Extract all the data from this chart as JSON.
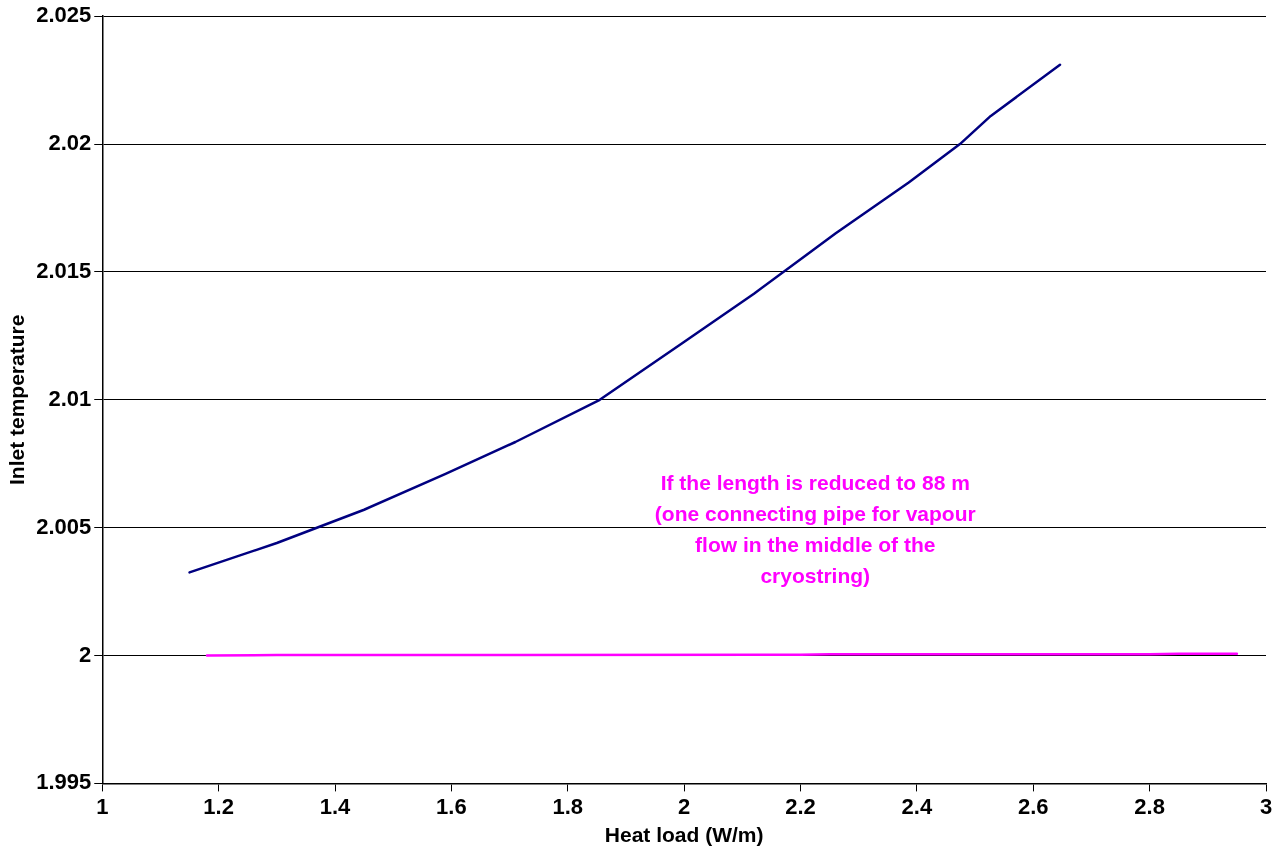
{
  "chart_data": {
    "type": "line",
    "xlabel": "Heat load (W/m)",
    "ylabel": "Inlet temperature",
    "xlim": [
      1,
      3
    ],
    "xticks": [
      1,
      1.2,
      1.4,
      1.6,
      1.8,
      2,
      2.2,
      2.4,
      2.6,
      2.8,
      3
    ],
    "ylim": [
      1.995,
      2.025
    ],
    "yticks": [
      1.995,
      2,
      2.005,
      2.01,
      2.015,
      2.02,
      2.025
    ],
    "grid": "y",
    "legend": false,
    "marker": "none",
    "line_style": "solid",
    "series": [
      {
        "color": "#000080",
        "x": [
          1.15,
          1.3,
          1.45,
          1.59,
          1.71,
          1.855,
          1.996,
          2.12,
          2.26,
          2.386,
          2.474,
          2.527,
          2.646
        ],
        "values": [
          2.00325,
          2.0044,
          2.0057,
          2.0071,
          2.00835,
          2.01,
          2.0122,
          2.01415,
          2.0165,
          2.0185,
          2.02,
          2.0211,
          2.0231
        ]
      },
      {
        "color": "#ff00ff",
        "x": [
          1.18,
          1.3,
          2.2,
          2.25,
          2.8,
          2.85,
          2.95
        ],
        "values": [
          2,
          2.00002,
          2.00003,
          2.00005,
          2.00005,
          2.00007,
          2.00007
        ]
      }
    ],
    "annotations": [
      "If the length is reduced to 88 m (one connecting pipe for vapour flow in the middle of the cryostring)"
    ]
  }
}
